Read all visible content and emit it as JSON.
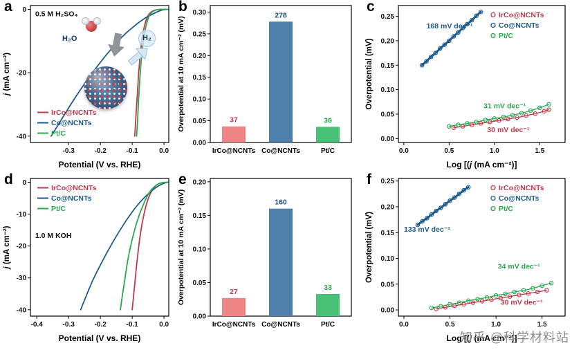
{
  "watermark": "知乎 @科学材料站",
  "panels": {
    "a": {
      "letter": "a"
    },
    "b": {
      "letter": "b"
    },
    "c": {
      "letter": "c"
    },
    "d": {
      "letter": "d"
    },
    "e": {
      "letter": "e"
    },
    "f": {
      "letter": "f"
    }
  },
  "inset": {
    "h2o": "H₂O",
    "h2": "H₂"
  },
  "colors": {
    "irco_ncnts": "#c0394b",
    "co_ncnts": "#1d5b8e",
    "pt_c": "#2aa84f"
  },
  "chart_data": [
    {
      "id": "a",
      "type": "line",
      "electrolyte": "0.5 M H₂SO₄",
      "xlabel": "Potential (V vs. RHE)",
      "ylabel": "j (mA cm⁻²)",
      "ylabel_rich": [
        {
          "t": "j",
          "i": true
        },
        {
          "t": " (mA cm⁻²)"
        }
      ],
      "xlim": [
        -0.42,
        0.015
      ],
      "ylim": [
        -42,
        1.2
      ],
      "xtick_values": [
        -0.3,
        -0.2,
        -0.1,
        0.0
      ],
      "xtick_labels": [
        "-0.3",
        "-0.2",
        "-0.1",
        "0.0"
      ],
      "ytick_values": [
        0,
        -20,
        -40
      ],
      "ytick_labels": [
        "0",
        "-20",
        "-40"
      ],
      "margin": {
        "l": 44,
        "r": 8,
        "t": 8,
        "b": 44
      },
      "legend": {
        "position": "bottom-left",
        "marker": "line"
      },
      "annotations": [
        {
          "text": "0.5 M H₂SO₄",
          "x": -0.405,
          "y": -2.2,
          "color": "#111111",
          "anchor": "start"
        }
      ],
      "series": [
        {
          "name": "IrCo@NCNTs",
          "color": "#c0394b",
          "width": 1.8,
          "points": [
            [
              0.012,
              0
            ],
            [
              -0.015,
              -0.05
            ],
            [
              -0.035,
              -0.5
            ],
            [
              -0.05,
              -2
            ],
            [
              -0.062,
              -5.5
            ],
            [
              -0.071,
              -11
            ],
            [
              -0.078,
              -18
            ],
            [
              -0.084,
              -27
            ],
            [
              -0.089,
              -35
            ],
            [
              -0.092,
              -40
            ]
          ]
        },
        {
          "name": "Co@NCNTs",
          "color": "#1d5b8e",
          "width": 1.8,
          "points": [
            [
              0.012,
              0
            ],
            [
              -0.005,
              -0.2
            ],
            [
              -0.03,
              -1.2
            ],
            [
              -0.06,
              -2.8
            ],
            [
              -0.09,
              -5
            ],
            [
              -0.13,
              -8.5
            ],
            [
              -0.17,
              -13
            ],
            [
              -0.21,
              -18
            ],
            [
              -0.25,
              -23.5
            ],
            [
              -0.29,
              -29.5
            ],
            [
              -0.33,
              -36
            ],
            [
              -0.355,
              -40
            ]
          ]
        },
        {
          "name": "Pt/C",
          "color": "#2aa84f",
          "width": 1.8,
          "points": [
            [
              0.012,
              0
            ],
            [
              -0.015,
              -0.05
            ],
            [
              -0.032,
              -0.5
            ],
            [
              -0.046,
              -2
            ],
            [
              -0.057,
              -5.5
            ],
            [
              -0.066,
              -11
            ],
            [
              -0.073,
              -18
            ],
            [
              -0.079,
              -27
            ],
            [
              -0.083,
              -35
            ],
            [
              -0.086,
              -40
            ]
          ]
        }
      ]
    },
    {
      "id": "b",
      "type": "bar",
      "ylabel": "Overpotential at 10 mA cm⁻² (mV)",
      "label_size": 10.5,
      "ylim": [
        0,
        0.315
      ],
      "ytick_values": [
        0,
        0.05,
        0.1,
        0.15,
        0.2,
        0.25,
        0.3
      ],
      "ytick_labels": [
        "0.00",
        "0.05",
        "0.10",
        "0.15",
        "0.20",
        "0.25",
        "0.30"
      ],
      "margin": {
        "l": 52,
        "r": 16,
        "t": 8,
        "b": 44
      },
      "categories": [
        "IrCo@NCNTs",
        "Co@NCNTs",
        "Pt/C"
      ],
      "values": [
        0.037,
        0.278,
        0.036
      ],
      "bar_labels": [
        "37",
        "278",
        "36"
      ],
      "bar_colors": [
        "#ee8585",
        "#4e80ab",
        "#49c175"
      ],
      "bar_label_colors": [
        "#c0394b",
        "#1d4e79",
        "#2aa84f"
      ]
    },
    {
      "id": "c",
      "type": "scatter",
      "xlabel": "Log [(j (mA cm⁻²)]",
      "xlabel_rich": [
        {
          "t": "Log [("
        },
        {
          "t": "j",
          "i": true
        },
        {
          "t": " (mA cm⁻²)]"
        }
      ],
      "ylabel": "Overpotential (mV)",
      "xlim": [
        -0.06,
        1.78
      ],
      "ylim": [
        -0.008,
        0.272
      ],
      "xtick_values": [
        0.0,
        0.5,
        1.0,
        1.5
      ],
      "xtick_labels": [
        "0.0",
        "0.5",
        "1.0",
        "1.5"
      ],
      "ytick_values": [
        0,
        0.05,
        0.1,
        0.15,
        0.2,
        0.25
      ],
      "ytick_labels": [
        "0.00",
        "0.05",
        "0.10",
        "0.15",
        "0.20",
        "0.25"
      ],
      "margin": {
        "l": 52,
        "r": 10,
        "t": 8,
        "b": 44
      },
      "legend": {
        "position": "top-right",
        "marker": "circle"
      },
      "annotations": [
        {
          "text": "168 mV dec⁻¹",
          "x": 0.25,
          "y": 0.225,
          "color": "#1d5b8e",
          "anchor": "start"
        },
        {
          "text": "31 mV dec⁻¹",
          "x": 0.88,
          "y": 0.062,
          "color": "#2aa84f",
          "anchor": "start"
        },
        {
          "text": "30 mV dec⁻¹",
          "x": 0.92,
          "y": 0.013,
          "color": "#c0394b",
          "anchor": "start"
        }
      ],
      "tafel_slopes": {
        "IrCo@NCNTs": "30 mV dec⁻¹",
        "Co@NCNTs": "168 mV dec⁻¹",
        "Pt/C": "31 mV dec⁻¹"
      },
      "series": [
        {
          "name": "IrCo@NCNTs",
          "color": "#c0394b",
          "marker": "circle",
          "width": 1.3,
          "points": [
            [
              0.55,
              0.022
            ],
            [
              0.65,
              0.025
            ],
            [
              0.75,
              0.028
            ],
            [
              0.85,
              0.031
            ],
            [
              0.95,
              0.034
            ],
            [
              1.05,
              0.037
            ],
            [
              1.15,
              0.04
            ],
            [
              1.25,
              0.043
            ],
            [
              1.35,
              0.047
            ],
            [
              1.45,
              0.051
            ],
            [
              1.55,
              0.056
            ],
            [
              1.6,
              0.059
            ]
          ]
        },
        {
          "name": "Co@NCNTs",
          "color": "#1d5b8e",
          "marker": "circle",
          "width": 3,
          "points": [
            [
              0.2,
              0.15
            ],
            [
              0.25,
              0.158
            ],
            [
              0.3,
              0.167
            ],
            [
              0.35,
              0.175
            ],
            [
              0.4,
              0.184
            ],
            [
              0.45,
              0.192
            ],
            [
              0.5,
              0.2
            ],
            [
              0.55,
              0.209
            ],
            [
              0.6,
              0.217
            ],
            [
              0.65,
              0.226
            ],
            [
              0.7,
              0.234
            ],
            [
              0.75,
              0.242
            ],
            [
              0.8,
              0.251
            ],
            [
              0.85,
              0.259
            ]
          ]
        },
        {
          "name": "Pt/C",
          "color": "#2aa84f",
          "marker": "circle",
          "width": 1.3,
          "points": [
            [
              0.5,
              0.025
            ],
            [
              0.6,
              0.028
            ],
            [
              0.7,
              0.031
            ],
            [
              0.8,
              0.034
            ],
            [
              0.9,
              0.038
            ],
            [
              1.0,
              0.041
            ],
            [
              1.1,
              0.044
            ],
            [
              1.2,
              0.048
            ],
            [
              1.3,
              0.052
            ],
            [
              1.4,
              0.057
            ],
            [
              1.5,
              0.063
            ],
            [
              1.6,
              0.07
            ]
          ]
        }
      ]
    },
    {
      "id": "d",
      "type": "line",
      "electrolyte": "1.0 M KOH",
      "xlabel": "Potential (V vs. RHE)",
      "ylabel": "j (mA cm⁻²)",
      "ylabel_rich": [
        {
          "t": "j",
          "i": true
        },
        {
          "t": " (mA cm⁻²)"
        }
      ],
      "xlim": [
        -0.42,
        0.015
      ],
      "ylim": [
        -42,
        1.2
      ],
      "xtick_values": [
        -0.4,
        -0.3,
        -0.2,
        -0.1,
        0.0
      ],
      "xtick_labels": [
        "-0.4",
        "-0.3",
        "-0.2",
        "-0.1",
        "0.0"
      ],
      "ytick_values": [
        0,
        -10,
        -20,
        -30,
        -40
      ],
      "ytick_labels": [
        "0",
        "-10",
        "-20",
        "-30",
        "-40"
      ],
      "margin": {
        "l": 44,
        "r": 8,
        "t": 8,
        "b": 44
      },
      "legend": {
        "position": "top-left",
        "marker": "line"
      },
      "annotations": [
        {
          "text": "1.0 M KOH",
          "x": -0.405,
          "y": -17.5,
          "color": "#111111",
          "anchor": "start"
        }
      ],
      "series": [
        {
          "name": "IrCo@NCNTs",
          "color": "#c0394b",
          "width": 1.8,
          "points": [
            [
              0.012,
              0
            ],
            [
              -0.01,
              -0.2
            ],
            [
              -0.025,
              -1
            ],
            [
              -0.04,
              -3
            ],
            [
              -0.054,
              -6.5
            ],
            [
              -0.066,
              -11.5
            ],
            [
              -0.076,
              -17.5
            ],
            [
              -0.085,
              -25
            ],
            [
              -0.092,
              -32
            ],
            [
              -0.098,
              -38
            ],
            [
              -0.1,
              -40
            ]
          ]
        },
        {
          "name": "Co@NCNTs",
          "color": "#1d5b8e",
          "width": 1.8,
          "points": [
            [
              0.012,
              0
            ],
            [
              0,
              -0.3
            ],
            [
              -0.02,
              -1.3
            ],
            [
              -0.045,
              -3.2
            ],
            [
              -0.075,
              -6.2
            ],
            [
              -0.105,
              -10
            ],
            [
              -0.135,
              -14.5
            ],
            [
              -0.165,
              -19.5
            ],
            [
              -0.195,
              -25
            ],
            [
              -0.225,
              -31
            ],
            [
              -0.25,
              -37
            ],
            [
              -0.262,
              -40
            ]
          ]
        },
        {
          "name": "Pt/C",
          "color": "#2aa84f",
          "width": 1.8,
          "points": [
            [
              0.012,
              0
            ],
            [
              -0.012,
              -0.3
            ],
            [
              -0.028,
              -1.2
            ],
            [
              -0.046,
              -3.2
            ],
            [
              -0.064,
              -6.8
            ],
            [
              -0.082,
              -11.5
            ],
            [
              -0.099,
              -17.5
            ],
            [
              -0.113,
              -24
            ],
            [
              -0.124,
              -31
            ],
            [
              -0.133,
              -37
            ],
            [
              -0.137,
              -40
            ]
          ]
        }
      ]
    },
    {
      "id": "e",
      "type": "bar",
      "ylabel": "Overpotential at 10 mA cm⁻² (mV)",
      "label_size": 10.5,
      "ylim": [
        0,
        0.205
      ],
      "ytick_values": [
        0,
        0.05,
        0.1,
        0.15,
        0.2
      ],
      "ytick_labels": [
        "0.00",
        "0.05",
        "0.10",
        "0.15",
        "0.20"
      ],
      "margin": {
        "l": 52,
        "r": 16,
        "t": 8,
        "b": 44
      },
      "categories": [
        "IrCo@NCNTs",
        "Co@NCNTs",
        "Pt/C"
      ],
      "values": [
        0.027,
        0.16,
        0.033
      ],
      "bar_labels": [
        "27",
        "160",
        "33"
      ],
      "bar_colors": [
        "#ee8585",
        "#4e80ab",
        "#49c175"
      ],
      "bar_label_colors": [
        "#c0394b",
        "#1d4e79",
        "#2aa84f"
      ]
    },
    {
      "id": "f",
      "type": "scatter",
      "xlabel": "Log [(j (mA cm⁻²)]",
      "xlabel_rich": [
        {
          "t": "Log [("
        },
        {
          "t": "j",
          "i": true
        },
        {
          "t": " (mA cm⁻²)]"
        }
      ],
      "ylabel": "Overpotential (mV)",
      "xlim": [
        -0.06,
        1.75
      ],
      "ylim": [
        -0.012,
        0.255
      ],
      "xtick_values": [
        0.0,
        0.5,
        1.0,
        1.5
      ],
      "xtick_labels": [
        "0.0",
        "0.5",
        "1.0",
        "1.5"
      ],
      "ytick_values": [
        0,
        0.05,
        0.1,
        0.15,
        0.2,
        0.25
      ],
      "ytick_labels": [
        "0.00",
        "0.05",
        "0.10",
        "0.15",
        "0.20",
        "0.25"
      ],
      "margin": {
        "l": 52,
        "r": 10,
        "t": 8,
        "b": 44
      },
      "legend": {
        "position": "top-right",
        "marker": "circle"
      },
      "annotations": [
        {
          "text": "133 mV dec⁻¹",
          "x": 0.0,
          "y": 0.152,
          "color": "#1d5b8e",
          "anchor": "start"
        },
        {
          "text": "34 mV dec⁻¹",
          "x": 1.02,
          "y": 0.08,
          "color": "#2aa84f",
          "anchor": "start"
        },
        {
          "text": "30 mV dec⁻¹",
          "x": 1.05,
          "y": 0.01,
          "color": "#c0394b",
          "anchor": "start"
        }
      ],
      "tafel_slopes": {
        "IrCo@NCNTs": "30 mV dec⁻¹",
        "Co@NCNTs": "133 mV dec⁻¹",
        "Pt/C": "34 mV dec⁻¹"
      },
      "series": [
        {
          "name": "IrCo@NCNTs",
          "color": "#c0394b",
          "marker": "circle",
          "width": 1.3,
          "points": [
            [
              0.35,
              0.002
            ],
            [
              0.45,
              0.005
            ],
            [
              0.55,
              0.008
            ],
            [
              0.65,
              0.011
            ],
            [
              0.75,
              0.014
            ],
            [
              0.85,
              0.017
            ],
            [
              0.95,
              0.02
            ],
            [
              1.05,
              0.023
            ],
            [
              1.15,
              0.026
            ],
            [
              1.25,
              0.029
            ],
            [
              1.35,
              0.032
            ],
            [
              1.45,
              0.035
            ],
            [
              1.55,
              0.038
            ]
          ]
        },
        {
          "name": "Co@NCNTs",
          "color": "#1d5b8e",
          "marker": "circle",
          "width": 3,
          "points": [
            [
              0.15,
              0.165
            ],
            [
              0.2,
              0.172
            ],
            [
              0.25,
              0.178
            ],
            [
              0.3,
              0.185
            ],
            [
              0.35,
              0.192
            ],
            [
              0.4,
              0.198
            ],
            [
              0.45,
              0.205
            ],
            [
              0.5,
              0.212
            ],
            [
              0.55,
              0.218
            ],
            [
              0.6,
              0.225
            ],
            [
              0.65,
              0.232
            ],
            [
              0.7,
              0.238
            ]
          ]
        },
        {
          "name": "Pt/C",
          "color": "#2aa84f",
          "marker": "circle",
          "width": 1.3,
          "points": [
            [
              0.3,
              0.004
            ],
            [
              0.4,
              0.007
            ],
            [
              0.5,
              0.011
            ],
            [
              0.6,
              0.014
            ],
            [
              0.7,
              0.018
            ],
            [
              0.8,
              0.021
            ],
            [
              0.9,
              0.024
            ],
            [
              1.0,
              0.028
            ],
            [
              1.1,
              0.031
            ],
            [
              1.2,
              0.035
            ],
            [
              1.3,
              0.038
            ],
            [
              1.4,
              0.042
            ],
            [
              1.5,
              0.047
            ],
            [
              1.6,
              0.052
            ]
          ]
        }
      ]
    }
  ]
}
